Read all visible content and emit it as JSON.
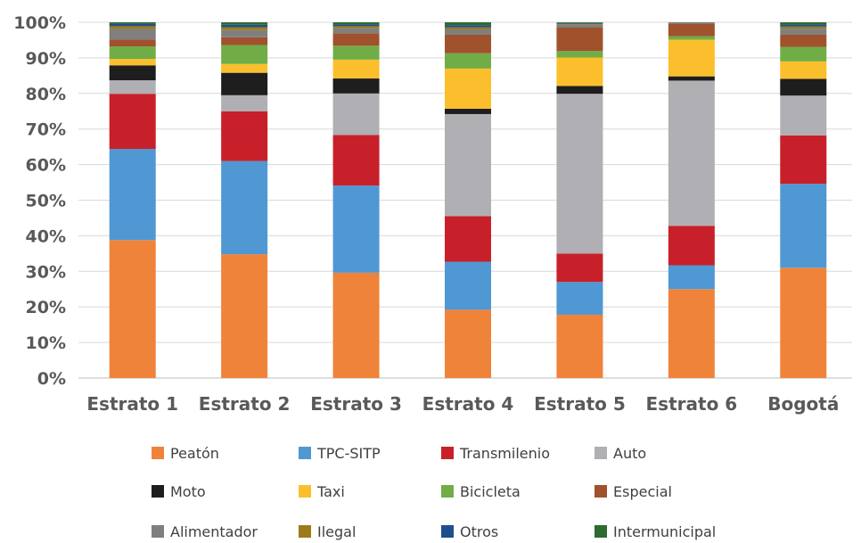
{
  "chart_data": {
    "type": "bar",
    "stacked": true,
    "categories": [
      "Estrato 1",
      "Estrato 2",
      "Estrato 3",
      "Estrato 4",
      "Estrato 5",
      "Estrato 6",
      "Bogotá"
    ],
    "y_ticks": [
      "0%",
      "10%",
      "20%",
      "30%",
      "40%",
      "50%",
      "60%",
      "70%",
      "80%",
      "90%",
      "100%"
    ],
    "ylim": [
      0,
      100
    ],
    "unit": "%",
    "grid": true,
    "legend_position": "bottom",
    "series": [
      {
        "name": "Peatón",
        "color": "#F0833A",
        "values": [
          38.8,
          34.8,
          29.6,
          19.2,
          17.8,
          25.0,
          31.0
        ]
      },
      {
        "name": "TPC-SITP",
        "color": "#4F98D4",
        "values": [
          25.6,
          26.2,
          24.5,
          13.5,
          9.2,
          6.7,
          23.6
        ]
      },
      {
        "name": "Transmilenio",
        "color": "#C8202A",
        "values": [
          15.5,
          14.0,
          14.2,
          12.8,
          8.0,
          11.1,
          13.6
        ]
      },
      {
        "name": "Auto",
        "color": "#B0B0B4",
        "values": [
          3.8,
          4.5,
          11.7,
          28.7,
          44.9,
          40.8,
          11.2
        ]
      },
      {
        "name": "Moto",
        "color": "#1E1E1E",
        "values": [
          4.2,
          6.3,
          4.2,
          1.5,
          2.2,
          1.2,
          4.7
        ]
      },
      {
        "name": "Taxi",
        "color": "#FBBF2D",
        "values": [
          1.8,
          2.5,
          5.3,
          11.3,
          8.0,
          10.3,
          4.9
        ]
      },
      {
        "name": "Bicicleta",
        "color": "#70AD47",
        "values": [
          3.5,
          5.3,
          3.9,
          4.3,
          1.8,
          1.0,
          4.1
        ]
      },
      {
        "name": "Especial",
        "color": "#A0522D",
        "values": [
          2.0,
          2.2,
          3.5,
          5.2,
          6.6,
          3.5,
          3.4
        ]
      },
      {
        "name": "Alimentador",
        "color": "#7F7F7F",
        "values": [
          2.9,
          2.0,
          1.4,
          1.5,
          0.9,
          0.2,
          1.7
        ]
      },
      {
        "name": "Ilegal",
        "color": "#9C7A1A",
        "values": [
          0.8,
          0.8,
          0.6,
          0.6,
          0.2,
          0.1,
          0.6
        ]
      },
      {
        "name": "Otros",
        "color": "#1F4E8C",
        "values": [
          0.7,
          0.7,
          0.5,
          0.6,
          0.2,
          0.1,
          0.6
        ]
      },
      {
        "name": "Intermunicipal",
        "color": "#2E6B30",
        "values": [
          0.4,
          0.7,
          0.6,
          0.8,
          0.2,
          0.0,
          0.6
        ]
      }
    ]
  }
}
